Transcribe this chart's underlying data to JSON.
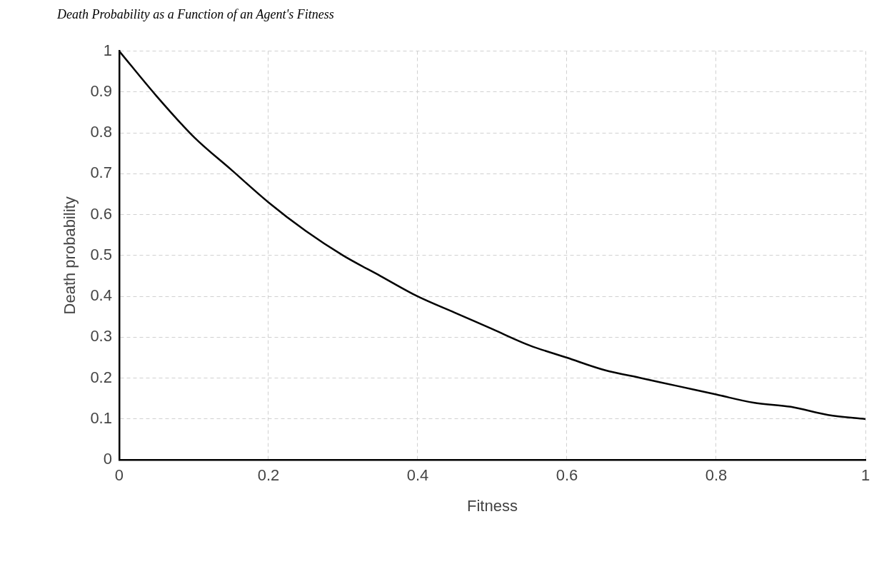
{
  "chart_data": {
    "type": "line",
    "title": "Death Probability as a Function of an Agent's Fitness",
    "xlabel": "Fitness",
    "ylabel": "Death probability",
    "x": [
      0,
      0.05,
      0.1,
      0.15,
      0.2,
      0.25,
      0.3,
      0.35,
      0.4,
      0.45,
      0.5,
      0.55,
      0.6,
      0.65,
      0.7,
      0.75,
      0.8,
      0.85,
      0.9,
      0.95,
      1
    ],
    "series": [
      {
        "color": "#000000",
        "values": [
          1,
          0.89,
          0.79,
          0.71,
          0.63,
          0.56,
          0.5,
          0.45,
          0.4,
          0.36,
          0.32,
          0.28,
          0.25,
          0.22,
          0.2,
          0.18,
          0.16,
          0.14,
          0.13,
          0.11,
          0.1
        ]
      }
    ],
    "xlim": [
      0,
      1
    ],
    "xticks": [
      0,
      0.2,
      0.4,
      0.6,
      0.8,
      1
    ],
    "ylim": [
      0,
      1
    ],
    "yticks": [
      0,
      0.1,
      0.2,
      0.3,
      0.4,
      0.5,
      0.6,
      0.7,
      0.8,
      0.9,
      1
    ],
    "grid": true,
    "legend": false,
    "marker": "none",
    "line_style": "solid"
  }
}
